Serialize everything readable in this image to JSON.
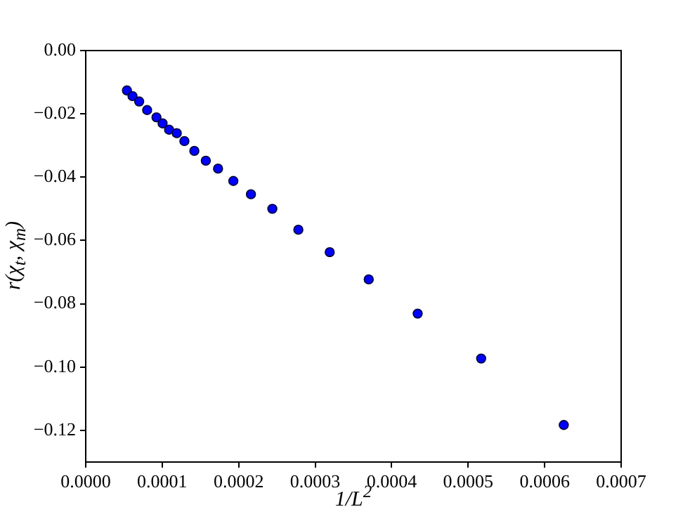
{
  "chart_data": {
    "type": "scatter",
    "xlabel": "1/L$^{2}$",
    "ylabel": "r(χ$_{t}$, χ$_{m}$)",
    "x": [
      5.39e-05,
      6.12e-05,
      6.99e-05,
      8.03e-05,
      9.25e-05,
      0.0001005,
      0.000109,
      0.000119,
      0.000129,
      0.000142,
      0.000157,
      0.000173,
      0.000193,
      0.000216,
      0.000244,
      0.000278,
      0.000319,
      0.00037,
      0.000434,
      0.000517,
      0.000625
    ],
    "values": [
      -0.0126,
      -0.0144,
      -0.0161,
      -0.0188,
      -0.0211,
      -0.023,
      -0.025,
      -0.0261,
      -0.0286,
      -0.0317,
      -0.0348,
      -0.0373,
      -0.0412,
      -0.0454,
      -0.05,
      -0.0566,
      -0.0637,
      -0.0723,
      -0.0831,
      -0.0973,
      -0.1183
    ],
    "color": "#0000ff",
    "marker": "circle",
    "grid": false,
    "xlim": [
      0,
      0.0007
    ],
    "xticks": [
      {
        "value": 0,
        "label": "0.0000"
      },
      {
        "value": 0.0001,
        "label": "0.0001"
      },
      {
        "value": 0.0002,
        "label": "0.0002"
      },
      {
        "value": 0.0003,
        "label": "0.0003"
      },
      {
        "value": 0.0004,
        "label": "0.0004"
      },
      {
        "value": 0.0005,
        "label": "0.0005"
      },
      {
        "value": 0.0006,
        "label": "0.0006"
      },
      {
        "value": 0.0007,
        "label": "0.0007"
      }
    ],
    "ylim": [
      -0.13,
      0
    ],
    "yticks": [
      {
        "value": 0,
        "label": "0.00"
      },
      {
        "value": -0.02,
        "label": "−0.02"
      },
      {
        "value": -0.04,
        "label": "−0.04"
      },
      {
        "value": -0.06,
        "label": "−0.06"
      },
      {
        "value": -0.08,
        "label": "−0.08"
      },
      {
        "value": -0.1,
        "label": "−0.10"
      },
      {
        "value": -0.12,
        "label": "−0.12"
      }
    ]
  }
}
